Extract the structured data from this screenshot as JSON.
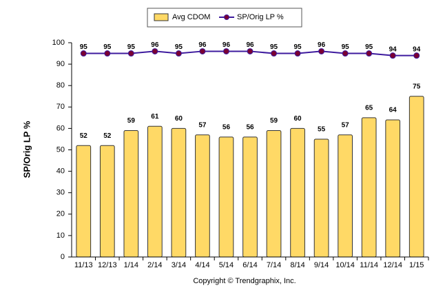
{
  "chart_data": {
    "type": "bar",
    "y_label": "SP/Orig  LP %",
    "caption": "Copyright © Trendgraphix, Inc.",
    "categories": [
      "11/13",
      "12/13",
      "1/14",
      "2/14",
      "3/14",
      "4/14",
      "5/14",
      "6/14",
      "7/14",
      "8/14",
      "9/14",
      "10/14",
      "11/14",
      "12/14",
      "1/15"
    ],
    "series": [
      {
        "name": "Avg CDOM",
        "mark": "bar",
        "color": "#ffd966",
        "values": [
          52,
          52,
          59,
          61,
          60,
          57,
          56,
          56,
          59,
          60,
          55,
          57,
          65,
          64,
          75
        ]
      },
      {
        "name": "SP/Orig LP %",
        "mark": "line",
        "color": "#3d1a9e",
        "marker_color": "#7a0033",
        "values": [
          95,
          95,
          95,
          96,
          95,
          96,
          96,
          96,
          95,
          95,
          96,
          95,
          95,
          94,
          94
        ]
      }
    ],
    "ylim": [
      0,
      100
    ],
    "yticks": [
      0,
      10,
      20,
      30,
      40,
      50,
      60,
      70,
      80,
      90,
      100
    ],
    "grid": false
  }
}
